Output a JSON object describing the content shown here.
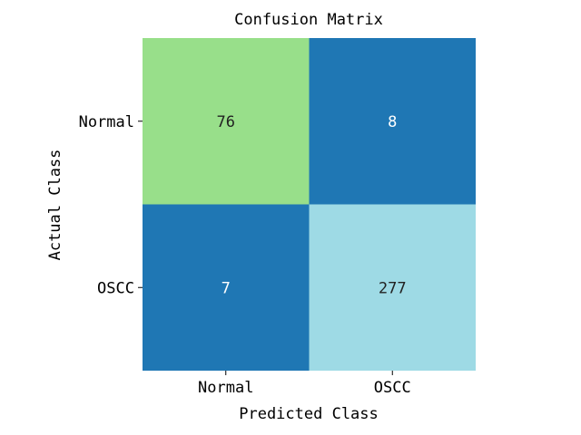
{
  "chart_data": {
    "type": "heatmap",
    "title": "Confusion Matrix",
    "xlabel": "Predicted Class",
    "ylabel": "Actual Class",
    "x_categories": [
      "Normal",
      "OSCC"
    ],
    "y_categories": [
      "Normal",
      "OSCC"
    ],
    "values": [
      [
        76,
        8
      ],
      [
        7,
        277
      ]
    ],
    "cell_colors": [
      [
        "#98df8a",
        "#1f77b4"
      ],
      [
        "#1f77b4",
        "#9edae5"
      ]
    ],
    "label_colors": [
      [
        "#222222",
        "#ffffff"
      ],
      [
        "#ffffff",
        "#222222"
      ]
    ],
    "colorbar": false
  }
}
